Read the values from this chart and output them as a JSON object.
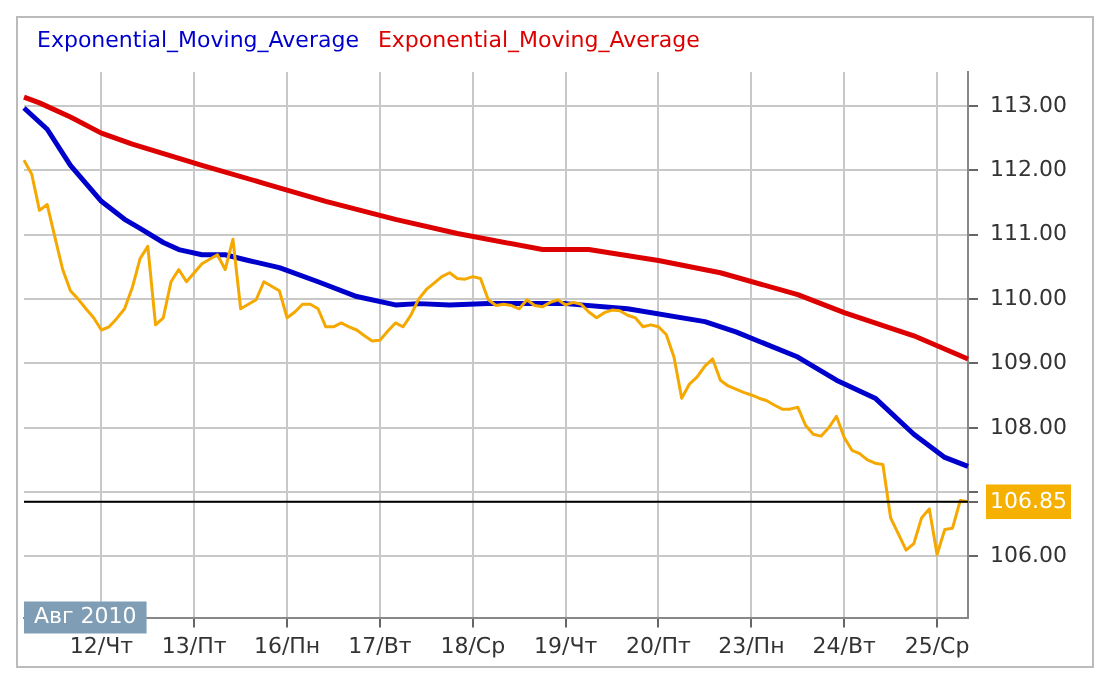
{
  "chart_data": {
    "type": "line",
    "categories": [
      null,
      null,
      null,
      null,
      null,
      null,
      null,
      null,
      null,
      null,
      "12/Чт",
      null,
      null,
      null,
      null,
      null,
      null,
      null,
      null,
      null,
      null,
      null,
      "13/Пт",
      null,
      null,
      null,
      null,
      null,
      null,
      null,
      null,
      null,
      null,
      null,
      "16/Пн",
      null,
      null,
      null,
      null,
      null,
      null,
      null,
      null,
      null,
      null,
      null,
      "17/Вт",
      null,
      null,
      null,
      null,
      null,
      null,
      null,
      null,
      null,
      null,
      null,
      "18/Ср",
      null,
      null,
      null,
      null,
      null,
      null,
      null,
      null,
      null,
      null,
      null,
      "19/Чт",
      null,
      null,
      null,
      null,
      null,
      null,
      null,
      null,
      null,
      null,
      null,
      "20/Пт",
      null,
      null,
      null,
      null,
      null,
      null,
      null,
      null,
      null,
      null,
      null,
      "23/Пн",
      null,
      null,
      null,
      null,
      null,
      null,
      null,
      null,
      null,
      null,
      null,
      "24/Вт",
      null,
      null,
      null,
      null,
      null,
      null,
      null,
      null,
      null,
      null,
      null,
      "25/Ср",
      null,
      null,
      null,
      null
    ],
    "series": [
      {
        "color": "#f5a800",
        "values": [
          112.16,
          111.94,
          111.38,
          111.47,
          110.96,
          110.46,
          110.13,
          110.0,
          109.85,
          109.71,
          109.52,
          109.57,
          109.7,
          109.85,
          110.18,
          110.63,
          110.82,
          109.6,
          109.71,
          110.27,
          110.46,
          110.27,
          110.41,
          110.55,
          110.62,
          110.69,
          110.46,
          110.93,
          109.85,
          109.92,
          109.99,
          110.27,
          110.2,
          110.13,
          109.71,
          109.8,
          109.92,
          109.92,
          109.85,
          109.57,
          109.57,
          109.63,
          109.57,
          109.52,
          109.43,
          109.35,
          109.36,
          109.5,
          109.63,
          109.57,
          109.75,
          110.0,
          110.15,
          110.25,
          110.35,
          110.41,
          110.32,
          110.31,
          110.35,
          110.32,
          109.99,
          109.9,
          109.92,
          109.9,
          109.85,
          109.99,
          109.9,
          109.88,
          109.95,
          109.99,
          109.91,
          109.95,
          109.92,
          109.8,
          109.71,
          109.79,
          109.83,
          109.82,
          109.75,
          109.71,
          109.57,
          109.6,
          109.57,
          109.45,
          109.1,
          108.46,
          108.68,
          108.79,
          108.96,
          109.07,
          108.74,
          108.65,
          108.6,
          108.55,
          108.51,
          108.46,
          108.42,
          108.35,
          108.29,
          108.29,
          108.32,
          108.04,
          107.9,
          107.87,
          108.0,
          108.18,
          107.85,
          107.65,
          107.6,
          107.5,
          107.45,
          107.43,
          106.6,
          106.35,
          106.1,
          106.2,
          106.6,
          106.74,
          106.03,
          106.42,
          106.44,
          106.87,
          106.85
        ]
      },
      {
        "name": "Exponential_Moving_Average",
        "color": "#0000cc",
        "values": [
          112.97,
          null,
          null,
          112.64,
          null,
          null,
          112.08,
          null,
          null,
          null,
          111.52,
          null,
          null,
          111.24,
          null,
          111.1,
          null,
          null,
          110.88,
          null,
          110.77,
          null,
          null,
          110.69,
          null,
          null,
          110.69,
          null,
          null,
          110.6,
          null,
          null,
          null,
          110.49,
          null,
          null,
          null,
          null,
          110.27,
          null,
          null,
          null,
          null,
          110.04,
          null,
          null,
          null,
          null,
          109.91,
          null,
          null,
          109.93,
          null,
          null,
          null,
          109.91,
          null,
          null,
          null,
          null,
          109.93,
          null,
          null,
          null,
          null,
          109.93,
          null,
          null,
          null,
          null,
          109.93,
          null,
          null,
          null,
          null,
          null,
          null,
          null,
          109.85,
          null,
          null,
          null,
          null,
          null,
          null,
          null,
          null,
          null,
          109.65,
          null,
          null,
          null,
          109.49,
          null,
          null,
          null,
          null,
          null,
          null,
          null,
          109.1,
          null,
          null,
          null,
          null,
          108.74,
          null,
          null,
          null,
          null,
          108.46,
          null,
          null,
          null,
          null,
          107.9,
          null,
          null,
          null,
          107.54,
          null,
          null,
          107.4
        ]
      },
      {
        "name": "Exponential_Moving_Average",
        "color": "#dd0000",
        "values": [
          113.14,
          null,
          113.05,
          null,
          null,
          null,
          112.83,
          null,
          null,
          null,
          112.58,
          null,
          null,
          null,
          112.41,
          null,
          null,
          null,
          null,
          null,
          null,
          null,
          null,
          112.08,
          null,
          null,
          null,
          null,
          null,
          null,
          null,
          111.8,
          null,
          null,
          null,
          null,
          null,
          null,
          null,
          111.52,
          null,
          null,
          null,
          null,
          null,
          null,
          null,
          null,
          111.24,
          null,
          null,
          null,
          null,
          null,
          null,
          null,
          111.02,
          null,
          null,
          null,
          null,
          null,
          null,
          null,
          null,
          null,
          null,
          110.77,
          null,
          null,
          null,
          null,
          null,
          110.77,
          null,
          null,
          null,
          null,
          null,
          null,
          null,
          null,
          110.6,
          null,
          null,
          null,
          null,
          null,
          null,
          null,
          110.41,
          null,
          null,
          null,
          null,
          null,
          null,
          null,
          null,
          null,
          110.07,
          null,
          null,
          null,
          null,
          null,
          109.79,
          null,
          null,
          null,
          null,
          null,
          null,
          null,
          null,
          109.43,
          null,
          null,
          null,
          null,
          null,
          null,
          109.07
        ]
      }
    ],
    "ylim": [
      105.05,
      113.53
    ],
    "yticks": [
      {
        "value": 106,
        "label": "106.00"
      },
      {
        "value": 106.85,
        "label": "106.85"
      },
      {
        "value": 107,
        "label": null
      },
      {
        "value": 108,
        "label": "108.00"
      },
      {
        "value": 109,
        "label": "109.00"
      },
      {
        "value": 110,
        "label": "110.00"
      },
      {
        "value": 111,
        "label": "111.00"
      },
      {
        "value": 112,
        "label": "112.00"
      },
      {
        "value": 113,
        "label": "113.00"
      }
    ],
    "ref_lines": [
      {
        "axis": "y",
        "value": 106.85,
        "color": "#000000"
      }
    ],
    "annotations": [
      "Авг 2010"
    ],
    "grid": true,
    "legend": "top left",
    "marker": "none",
    "line_style": "solid"
  }
}
